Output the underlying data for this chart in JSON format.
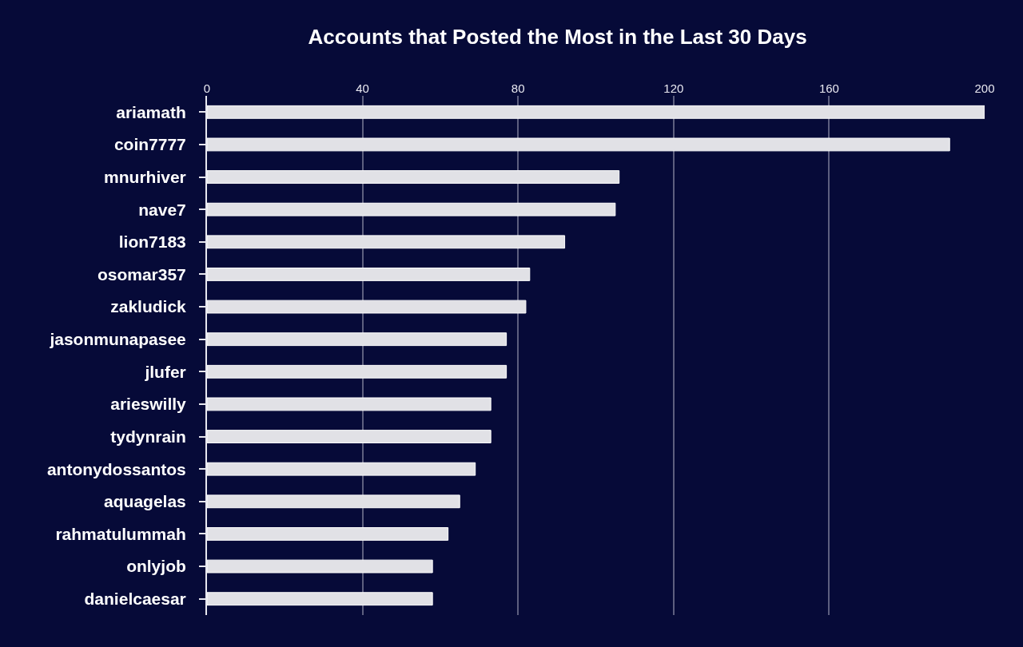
{
  "chart_data": {
    "type": "bar",
    "orientation": "horizontal",
    "title": "Accounts that Posted the Most in the Last 30 Days",
    "categories": [
      "ariamath",
      "coin7777",
      "mnurhiver",
      "nave7",
      "lion7183",
      "osomar357",
      "zakludick",
      "jasonmunapasee",
      "jlufer",
      "arieswilly",
      "tydynrain",
      "antonydossantos",
      "aquagelas",
      "rahmatulummah",
      "onlyjob",
      "danielcaesar"
    ],
    "values": [
      200,
      191,
      106,
      105,
      92,
      83,
      82,
      77,
      77,
      73,
      73,
      69,
      65,
      62,
      58,
      58
    ],
    "color": "#e1e1e6",
    "xlim": [
      0,
      200
    ],
    "xticks": [
      0,
      40,
      80,
      120,
      160,
      200
    ],
    "grid": "x"
  }
}
